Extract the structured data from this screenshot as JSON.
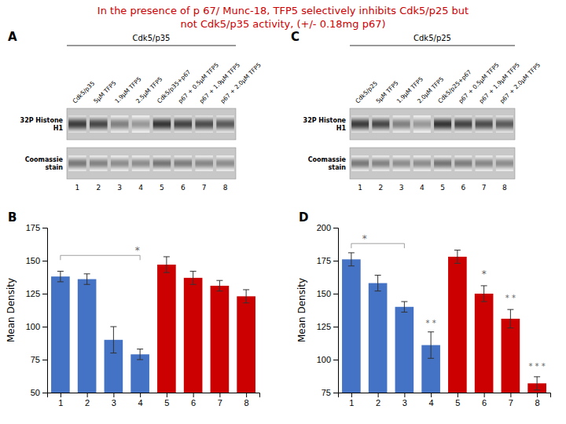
{
  "title": "In the presence of p 67/ Munc-18, TFP5 selectively inhibits Cdk5/p25 but\nnot Cdk5/p35 activity, (+/- 0.18mg p67)",
  "color": "#cc0000",
  "chart_data": [
    {
      "type": "gel",
      "panel_label": "A",
      "title": "Cdk5/p35",
      "categories": [
        "Cdk5/p35",
        "5μM TFP5",
        "1.9μM TFP5",
        "2.5μM TFP5",
        "Cdk5/p35+p67",
        "p67 + 0.5μM TFP5",
        "p67 + 1.9μM TFP5",
        "p67 + 2.0μM TFP5"
      ],
      "rows": [
        "32P Histone\nH1",
        "Coomassie\nstain"
      ],
      "values": [
        [
          0.85,
          0.8,
          0.55,
          0.45,
          0.88,
          0.82,
          0.78,
          0.72
        ],
        [
          0.7,
          0.65,
          0.6,
          0.6,
          0.72,
          0.68,
          0.63,
          0.6
        ]
      ],
      "xticks": [
        1,
        2,
        3,
        4,
        5,
        6,
        7,
        8
      ]
    },
    {
      "type": "gel",
      "panel_label": "C",
      "title": "Cdk5/p25",
      "categories": [
        "Cdk5/p25",
        "5μM TFP5",
        "1.9μM TFP5",
        "2.0μM TFP5",
        "Cdk5/p25+p67",
        "p67 + 0.5μM TFP5",
        "p67 + 1.9μM TFP5",
        "p67 + 2.0μM TFP5"
      ],
      "rows": [
        "32P Histone\nH1",
        "Coomassie\nstain"
      ],
      "values": [
        [
          0.85,
          0.8,
          0.55,
          0.45,
          0.88,
          0.82,
          0.78,
          0.72
        ],
        [
          0.7,
          0.65,
          0.6,
          0.6,
          0.72,
          0.68,
          0.63,
          0.6
        ]
      ],
      "xticks": [
        1,
        2,
        3,
        4,
        5,
        6,
        7,
        8
      ]
    },
    {
      "type": "bar",
      "panel_label": "B",
      "x": [
        1,
        2,
        3,
        4,
        5,
        6,
        7,
        8
      ],
      "values": [
        138,
        136,
        90,
        79,
        147,
        137,
        131,
        123
      ],
      "errors": [
        4,
        4,
        10,
        4,
        6,
        5,
        4,
        5
      ],
      "colors": [
        "#4472c4",
        "#4472c4",
        "#4472c4",
        "#4472c4",
        "#cc0000",
        "#cc0000",
        "#cc0000",
        "#cc0000"
      ],
      "xlim": [
        0.5,
        8.5
      ],
      "xticks": [
        1,
        2,
        3,
        4,
        5,
        6,
        7,
        8
      ],
      "ylim": [
        50,
        175
      ],
      "yticks": [
        50,
        75,
        100,
        125,
        150,
        175
      ],
      "ylabel": "Mean Density",
      "bracket": {
        "x1": 1,
        "x2": 4,
        "y": 154
      },
      "annotations": [
        {
          "x": 3.9,
          "y": 154.5,
          "text": "*"
        }
      ]
    },
    {
      "type": "bar",
      "panel_label": "D",
      "x": [
        1,
        2,
        3,
        4,
        5,
        6,
        7,
        8
      ],
      "values": [
        176,
        158,
        140,
        111,
        178,
        150,
        131,
        82
      ],
      "errors": [
        5,
        6,
        4,
        10,
        5,
        6,
        7,
        5
      ],
      "colors": [
        "#4472c4",
        "#4472c4",
        "#4472c4",
        "#4472c4",
        "#cc0000",
        "#cc0000",
        "#cc0000",
        "#cc0000"
      ],
      "xlim": [
        0.5,
        8.5
      ],
      "xticks": [
        1,
        2,
        3,
        4,
        5,
        6,
        7,
        8
      ],
      "ylim": [
        75,
        200
      ],
      "yticks": [
        75,
        100,
        125,
        150,
        175,
        200
      ],
      "ylabel": "Mean Density",
      "bracket": {
        "x1": 1,
        "x2": 3,
        "y": 188
      },
      "annotations": [
        {
          "x": 1.5,
          "y": 188.5,
          "text": "*"
        },
        {
          "x": 4,
          "y": 125,
          "text": "* *"
        },
        {
          "x": 6,
          "y": 162,
          "text": "*"
        },
        {
          "x": 7,
          "y": 144,
          "text": "* *"
        },
        {
          "x": 8,
          "y": 92,
          "text": "* * *"
        }
      ]
    }
  ]
}
